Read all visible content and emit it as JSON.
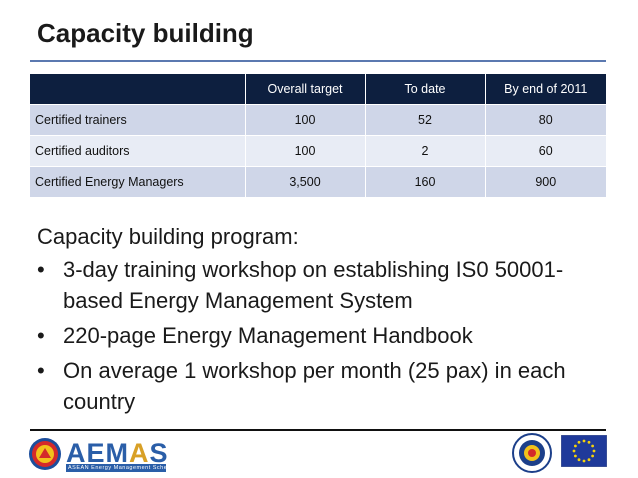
{
  "title": "Capacity building",
  "table": {
    "headers": [
      "",
      "Overall target",
      "To date",
      "By end of 2011"
    ],
    "rows": [
      [
        "Certified trainers",
        "100",
        "52",
        "80"
      ],
      [
        "Certified auditors",
        "100",
        "2",
        "60"
      ],
      [
        "Certified Energy Managers",
        "3,500",
        "160",
        "900"
      ]
    ]
  },
  "body": {
    "lead": "Capacity building program:",
    "bullets": [
      "3-day training workshop on establishing IS0 50001-based Energy Management System",
      "220-page Energy Management Handbook",
      "On average 1 workshop per month (25 pax) in each country"
    ]
  },
  "footer": {
    "logo_main_a": "AEM",
    "logo_main_b": "A",
    "logo_main_c": "S",
    "logo_sub": "ASEAN Energy Management Scheme"
  },
  "colors": {
    "header_bg": "#0d1f3f",
    "row_dark": "#cfd6e8",
    "row_light": "#e8ecf5",
    "accent": "#2a5ea8"
  },
  "icons": {
    "left": "asean-emblem-icon",
    "seal": "seal-icon",
    "flag": "eu-flag-icon"
  }
}
